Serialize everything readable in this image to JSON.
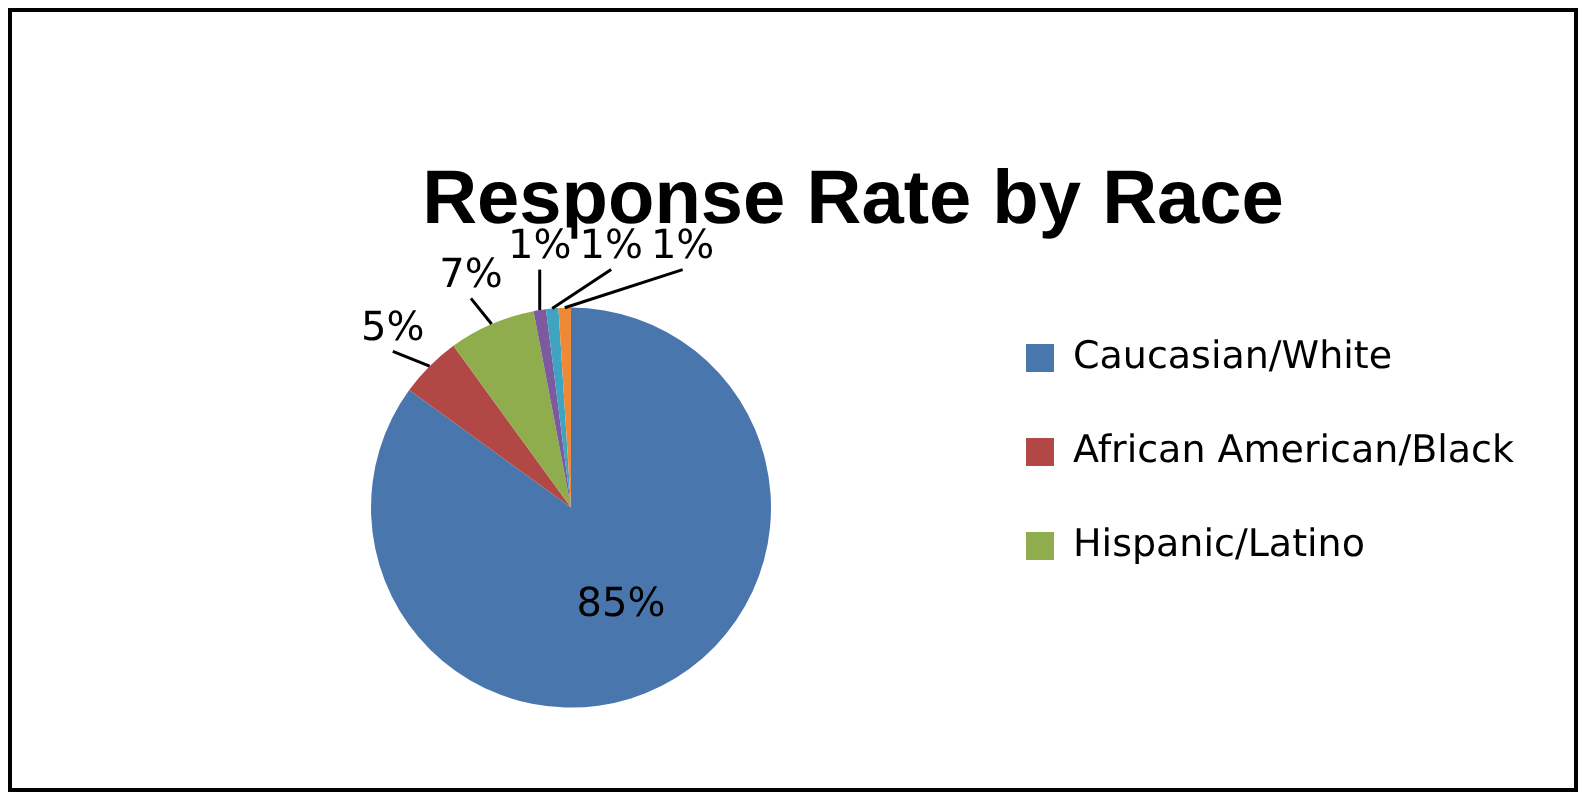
{
  "chart_data": {
    "type": "pie",
    "title": "Response Rate by Race",
    "categories": [
      "Caucasian/White",
      "African American/Black",
      "Hispanic/Latino",
      null,
      null,
      null
    ],
    "values": [
      85,
      5,
      7,
      1,
      1,
      1
    ],
    "colors": [
      "#4a76ae",
      "#b24845",
      "#8fad4d",
      "#7c5a9e",
      "#3fa3c2",
      "#ee8a35"
    ],
    "value_labels": [
      "85%",
      "5%",
      "7%",
      "1%",
      "1%",
      "1%"
    ],
    "legend": "right"
  }
}
